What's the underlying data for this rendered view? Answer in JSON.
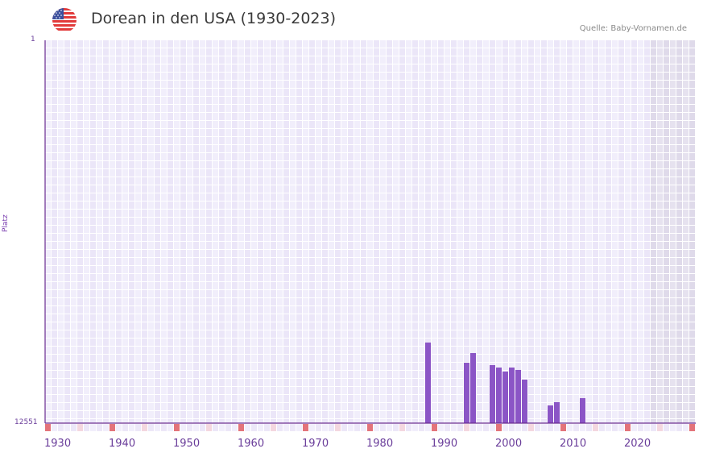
{
  "header": {
    "title": "Dorean in den USA (1930-2023)",
    "source": "Quelle: Baby-Vornamen.de",
    "flag_icon": "us-flag-icon"
  },
  "axes": {
    "y_title": "Platz",
    "y_top_label": "1",
    "y_bottom_label": "12551",
    "x_ticks": [
      "1930",
      "1940",
      "1950",
      "1960",
      "1970",
      "1980",
      "1990",
      "2000",
      "2010",
      "2020"
    ]
  },
  "colors": {
    "bar": "#8b55c6",
    "axis": "#6a2c91",
    "grid_a": "#f1eefb",
    "grid_b": "#ebe6f8",
    "future": "#e4e0ee",
    "decade_marker": "#e3737a",
    "half_decade_marker": "#f4d7df"
  },
  "chart_data": {
    "type": "bar",
    "title": "Dorean in den USA (1930-2023)",
    "xlabel": "",
    "ylabel": "Platz",
    "ylim": [
      12551,
      1
    ],
    "y_inverted": true,
    "x_range": [
      1930,
      2030
    ],
    "x_ticks": [
      1930,
      1940,
      1950,
      1960,
      1970,
      1980,
      1990,
      2000,
      2010,
      2020
    ],
    "grid": true,
    "future_shaded_from": 2024,
    "categories": [
      1989,
      1995,
      1996,
      1999,
      2000,
      2001,
      2002,
      2003,
      2004,
      2008,
      2009,
      2013
    ],
    "values": [
      9909,
      10570,
      10253,
      10649,
      10728,
      10860,
      10728,
      10807,
      11124,
      11970,
      11864,
      11731
    ],
    "source": "Baby-Vornamen.de"
  }
}
